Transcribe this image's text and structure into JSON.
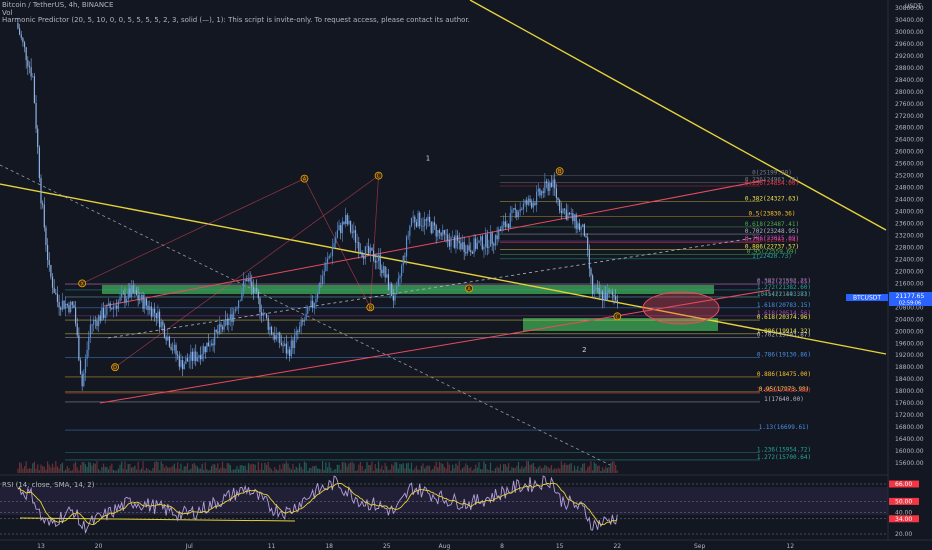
{
  "header": {
    "symbol_line": "Bitcoin / TetherUS, 4h, BINANCE",
    "vol_label": "Vol",
    "indicator_line": "Harmonic Predictor (20, 5, 10, 0, 0, 5, 5, 5, 5, 2, 3, solid (—), 1): This script is invite-only. To request access, please contact its author."
  },
  "price_axis": {
    "unit": "USDT",
    "ticks": [
      "30800.00",
      "30400.00",
      "30000.00",
      "29600.00",
      "29200.00",
      "28800.00",
      "28400.00",
      "28000.00",
      "27600.00",
      "27200.00",
      "26800.00",
      "26400.00",
      "26000.00",
      "25600.00",
      "25200.00",
      "24800.00",
      "24400.00",
      "24000.00",
      "23600.00",
      "23200.00",
      "22800.00",
      "22400.00",
      "22000.00",
      "21600.00",
      "21200.00",
      "20800.00",
      "20400.00",
      "20000.00",
      "19600.00",
      "19200.00",
      "18800.00",
      "18400.00",
      "18000.00",
      "17600.00",
      "17200.00",
      "16800.00",
      "16400.00",
      "16000.00",
      "15600.00"
    ],
    "last_price_symbol": "BTCUSDT",
    "last_price": "21177.65",
    "countdown": "02:59:06"
  },
  "rsi": {
    "label": "RSI (14, close, SMA, 14, 2)",
    "levels": [
      "66.00",
      "50.00",
      "40.00",
      "34.00",
      "20.00"
    ]
  },
  "time_axis": {
    "ticks": [
      "13",
      "20",
      "Jul",
      "11",
      "18",
      "25",
      "Aug",
      "8",
      "15",
      "22",
      "Sep",
      "12"
    ]
  },
  "fib_labels": [
    {
      "text": "0(25199.99)",
      "price": 25199.99,
      "color": "#787b86"
    },
    {
      "text": "0.236(24963.26)",
      "price": 24963.26,
      "color": "#787b86"
    },
    {
      "text": "0.236(24854.00)",
      "price": 24854.0,
      "color": "#f23645"
    },
    {
      "text": "0.382(24327.63)",
      "price": 24327.63,
      "color": "#f2e34b"
    },
    {
      "text": "0.5(23830.36)",
      "price": 23830.36,
      "color": "#fbc02d"
    },
    {
      "text": "0.618(23487.41)",
      "price": 23487.41,
      "color": "#4caf50"
    },
    {
      "text": "0.702(23248.95)",
      "price": 23248.95,
      "color": "#b2b5be"
    },
    {
      "text": "0.236(22961.04)",
      "price": 22961.04,
      "color": "#f23645"
    },
    {
      "text": "0.786(23015.09)",
      "price": 23015.09,
      "color": "#ab47bc"
    },
    {
      "text": "0.886(22737.57)",
      "price": 22737.57,
      "color": "#f2e34b"
    },
    {
      "text": "0.95(22559.69)",
      "price": 22559.69,
      "color": "#4caf50"
    },
    {
      "text": "1(22420.73)",
      "price": 22420.73,
      "color": "#26a69a"
    },
    {
      "text": "0.382(21556.65)",
      "price": 21556.65,
      "color": "#ab47bc"
    },
    {
      "text": "0.382(21592.21)",
      "price": 21592.21,
      "color": "#787b86"
    },
    {
      "text": "1.272(21382.60)",
      "price": 21382.6,
      "color": "#26a69a"
    },
    {
      "text": "1.414(21143.83)",
      "price": 21143.83,
      "color": "#26a69a"
    },
    {
      "text": "0.5(21149.37)",
      "price": 21149.37,
      "color": "#787b86"
    },
    {
      "text": "1.618(20783.15)",
      "price": 20783.15,
      "color": "#4a90e2"
    },
    {
      "text": "1.618(20514.56)",
      "price": 20514.56,
      "color": "#ab47bc"
    },
    {
      "text": "0.618(20374.96)",
      "price": 20374.96,
      "color": "#f2e34b"
    },
    {
      "text": "1.886(19914.32)",
      "price": 19914.32,
      "color": "#f2e34b"
    },
    {
      "text": "0.702(19793.87)",
      "price": 19793.87,
      "color": "#b2b5be"
    },
    {
      "text": "0.786(19130.86)",
      "price": 19130.86,
      "color": "#4a90e2"
    },
    {
      "text": "0.886(18475.00)",
      "price": 18475.0,
      "color": "#fbc02d"
    },
    {
      "text": "0.95(17973.98)",
      "price": 17973.98,
      "color": "#f2e34b"
    },
    {
      "text": "2.618(17933.88)",
      "price": 17933.88,
      "color": "#f23645"
    },
    {
      "text": "1(17640.00)",
      "price": 17640.0,
      "color": "#b2b5be"
    },
    {
      "text": "1.13(16699.61)",
      "price": 16699.61,
      "color": "#4a90e2"
    },
    {
      "text": "1.236(15954.72)",
      "price": 15954.72,
      "color": "#26a69a"
    },
    {
      "text": "1.272(15700.64)",
      "price": 15700.64,
      "color": "#26a69a"
    }
  ],
  "pattern_points": [
    {
      "label": "X",
      "date": "2022-06-18",
      "price": 21600
    },
    {
      "label": "A",
      "date": "2022-07-15",
      "price": 25100
    },
    {
      "label": "B",
      "date": "2022-07-23",
      "price": 20800
    },
    {
      "label": "C",
      "date": "2022-07-24",
      "price": 25200
    },
    {
      "label": "D",
      "date": "2022-06-22",
      "price": 18800
    },
    {
      "label": "A",
      "date": "2022-08-04",
      "price": 21430
    },
    {
      "label": "B",
      "date": "2022-08-15",
      "price": 25350
    },
    {
      "label": "C",
      "date": "2022-08-22",
      "price": 20500
    }
  ],
  "wave_labels": [
    {
      "text": "1",
      "date": "2022-07-30",
      "price": 25700
    },
    {
      "text": "2",
      "date": "2022-08-18",
      "price": 19300
    }
  ],
  "chart_data": {
    "type": "line",
    "title": "Bitcoin / TetherUS, 4h, BINANCE",
    "xlabel": "",
    "ylabel": "USDT",
    "ylim": [
      15400,
      31000
    ],
    "xlim": [
      "2022-06-10",
      "2022-09-19"
    ],
    "grid": false,
    "series": [
      {
        "name": "BTCUSDT",
        "x": [
          "2022-06-10",
          "2022-06-12",
          "2022-06-13",
          "2022-06-14",
          "2022-06-15",
          "2022-06-17",
          "2022-06-18",
          "2022-06-19",
          "2022-06-21",
          "2022-06-24",
          "2022-06-27",
          "2022-06-30",
          "2022-07-02",
          "2022-07-06",
          "2022-07-08",
          "2022-07-11",
          "2022-07-13",
          "2022-07-16",
          "2022-07-19",
          "2022-07-20",
          "2022-07-22",
          "2022-07-24",
          "2022-07-26",
          "2022-07-28",
          "2022-07-30",
          "2022-08-01",
          "2022-08-04",
          "2022-08-07",
          "2022-08-10",
          "2022-08-12",
          "2022-08-14",
          "2022-08-15",
          "2022-08-17",
          "2022-08-18",
          "2022-08-19",
          "2022-08-20",
          "2022-08-22"
        ],
        "values": [
          30300,
          28500,
          24500,
          22000,
          21000,
          20800,
          18200,
          20200,
          20700,
          21300,
          20600,
          18900,
          19200,
          20400,
          21800,
          20000,
          19300,
          20900,
          23300,
          23700,
          22700,
          22400,
          21000,
          23800,
          23600,
          23100,
          22800,
          23100,
          24100,
          24400,
          25000,
          24200,
          23600,
          23300,
          21300,
          21200,
          21177
        ]
      }
    ],
    "rsi_series": {
      "name": "RSI",
      "values": [
        62,
        55,
        35,
        28,
        34,
        42,
        26,
        30,
        38,
        50,
        45,
        38,
        41,
        55,
        62,
        44,
        40,
        58,
        68,
        60,
        50,
        46,
        40,
        63,
        58,
        52,
        48,
        55,
        64,
        66,
        70,
        52,
        46,
        42,
        28,
        30,
        36
      ]
    },
    "rsi_levels": [
      66,
      50,
      40,
      34,
      20
    ],
    "last_price": 21177.65
  }
}
